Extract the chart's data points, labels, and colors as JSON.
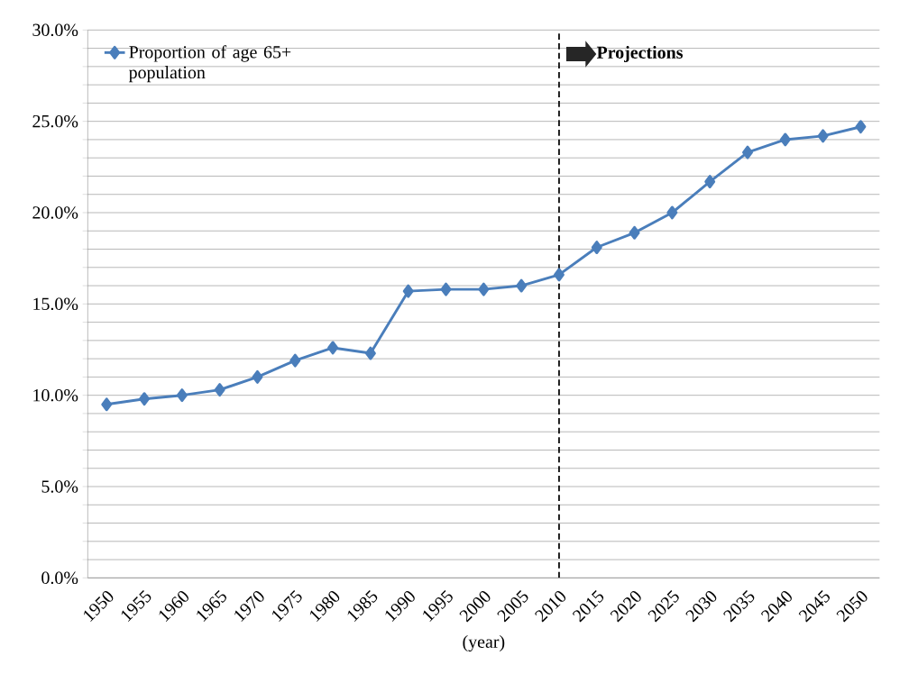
{
  "chart_data": {
    "type": "line",
    "xlabel": "(year)",
    "categories": [
      "1950",
      "1955",
      "1960",
      "1965",
      "1970",
      "1975",
      "1980",
      "1985",
      "1990",
      "1995",
      "2000",
      "2005",
      "2010",
      "2015",
      "2020",
      "2025",
      "2030",
      "2035",
      "2040",
      "2045",
      "2050"
    ],
    "series": [
      {
        "name": "Proportion of age 65+ population",
        "color": "#4a7ebb",
        "values": [
          9.5,
          9.8,
          10.0,
          10.3,
          11.0,
          11.9,
          12.6,
          12.3,
          15.7,
          15.8,
          15.8,
          16.0,
          16.6,
          18.1,
          18.9,
          20.0,
          21.7,
          23.3,
          24.0,
          24.2,
          24.7
        ]
      }
    ],
    "ylim": [
      0,
      30
    ],
    "yticks": [
      {
        "value": 0,
        "label": "0.0%"
      },
      {
        "value": 1,
        "label": null
      },
      {
        "value": 2,
        "label": null
      },
      {
        "value": 3,
        "label": null
      },
      {
        "value": 4,
        "label": null
      },
      {
        "value": 5,
        "label": "5.0%"
      },
      {
        "value": 6,
        "label": null
      },
      {
        "value": 7,
        "label": null
      },
      {
        "value": 8,
        "label": null
      },
      {
        "value": 9,
        "label": null
      },
      {
        "value": 10,
        "label": "10.0%"
      },
      {
        "value": 11,
        "label": null
      },
      {
        "value": 12,
        "label": null
      },
      {
        "value": 13,
        "label": null
      },
      {
        "value": 14,
        "label": null
      },
      {
        "value": 15,
        "label": "15.0%"
      },
      {
        "value": 16,
        "label": null
      },
      {
        "value": 17,
        "label": null
      },
      {
        "value": 18,
        "label": null
      },
      {
        "value": 19,
        "label": null
      },
      {
        "value": 20,
        "label": "20.0%"
      },
      {
        "value": 21,
        "label": null
      },
      {
        "value": 22,
        "label": null
      },
      {
        "value": 23,
        "label": null
      },
      {
        "value": 24,
        "label": null
      },
      {
        "value": 25,
        "label": "25.0%"
      },
      {
        "value": 26,
        "label": null
      },
      {
        "value": 27,
        "label": null
      },
      {
        "value": 28,
        "label": null
      },
      {
        "value": 29,
        "label": null
      },
      {
        "value": 30,
        "label": "30.0%"
      }
    ],
    "ref_lines": [
      {
        "axis": "x",
        "value": "2010",
        "label": "Projections",
        "color": "#000000",
        "line_style": "dashed"
      }
    ],
    "grid": "y",
    "legend": "top left",
    "marker": "diamond",
    "line_style": "solid"
  }
}
